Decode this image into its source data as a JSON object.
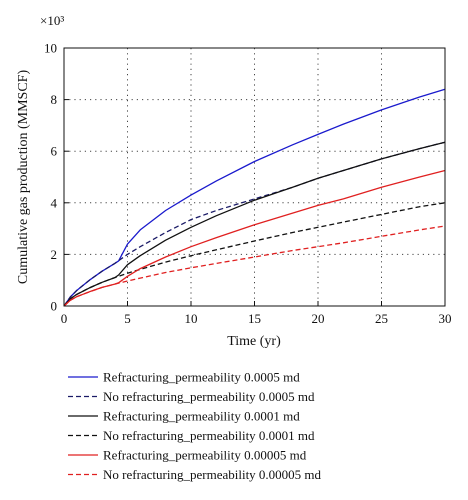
{
  "chart_data": {
    "type": "line",
    "title": "",
    "xlabel": "Time (yr)",
    "ylabel": "Cumulative gas production (MMSCF)",
    "y_multiplier_label": "×10³",
    "xlim": [
      0,
      30
    ],
    "ylim": [
      0,
      10
    ],
    "x_ticks": [
      "0",
      "5",
      "10",
      "15",
      "20",
      "25",
      "30"
    ],
    "y_ticks": [
      "0",
      "2",
      "4",
      "6",
      "8",
      "10"
    ],
    "grid": "dotted, at x=5,10,15,20,25 and y=2,4,6,8",
    "legend_position": "bottom, below plot",
    "series": [
      {
        "name": "Refracturing_permeability 0.0005 md",
        "color": "#1a1acd",
        "dash": "solid",
        "x": [
          0,
          0.5,
          1,
          2,
          3,
          4,
          4.3,
          5,
          6,
          8,
          10,
          12,
          15,
          18,
          20,
          22,
          25,
          28,
          30
        ],
        "y": [
          0,
          0.35,
          0.6,
          1.0,
          1.35,
          1.65,
          1.75,
          2.4,
          2.95,
          3.7,
          4.3,
          4.85,
          5.6,
          6.25,
          6.65,
          7.05,
          7.6,
          8.1,
          8.4
        ]
      },
      {
        "name": "No refracturing_permeability 0.0005 md",
        "color": "#1a1a66",
        "dash": "dashed",
        "x": [
          0,
          0.5,
          1,
          2,
          3,
          4,
          5,
          6,
          8,
          10,
          12,
          15,
          18,
          20,
          22,
          25,
          28,
          30
        ],
        "y": [
          0,
          0.35,
          0.6,
          1.0,
          1.35,
          1.65,
          2.0,
          2.3,
          2.85,
          3.35,
          3.7,
          4.15,
          4.6,
          4.95,
          5.25,
          5.7,
          6.1,
          6.35
        ]
      },
      {
        "name": "Refracturing_permeability 0.0001 md",
        "color": "#111111",
        "dash": "solid",
        "x": [
          0,
          0.5,
          1,
          2,
          3,
          4,
          4.3,
          5,
          6,
          8,
          10,
          12,
          15,
          18,
          20,
          22,
          25,
          28,
          30
        ],
        "y": [
          0,
          0.28,
          0.45,
          0.7,
          0.92,
          1.1,
          1.2,
          1.6,
          1.95,
          2.55,
          3.05,
          3.5,
          4.1,
          4.6,
          4.95,
          5.25,
          5.7,
          6.1,
          6.35
        ]
      },
      {
        "name": "No refracturing_permeability 0.0001 md",
        "color": "#111111",
        "dash": "dashed",
        "x": [
          0,
          0.5,
          1,
          2,
          3,
          4,
          5,
          6,
          8,
          10,
          12,
          15,
          18,
          20,
          22,
          25,
          28,
          30
        ],
        "y": [
          0,
          0.28,
          0.45,
          0.7,
          0.92,
          1.1,
          1.27,
          1.42,
          1.7,
          1.95,
          2.18,
          2.52,
          2.85,
          3.05,
          3.25,
          3.55,
          3.85,
          4.0
        ]
      },
      {
        "name": "Refracturing_permeability 0.00005 md",
        "color": "#e02020",
        "dash": "solid",
        "x": [
          0,
          0.5,
          1,
          2,
          3,
          4,
          4.3,
          5,
          6,
          8,
          10,
          12,
          15,
          18,
          20,
          22,
          25,
          28,
          30
        ],
        "y": [
          0,
          0.22,
          0.36,
          0.55,
          0.72,
          0.85,
          0.9,
          1.15,
          1.45,
          1.9,
          2.3,
          2.65,
          3.15,
          3.6,
          3.9,
          4.15,
          4.6,
          5.0,
          5.25
        ]
      },
      {
        "name": "No refracturing_permeability 0.00005 md",
        "color": "#e02020",
        "dash": "dashed",
        "x": [
          0,
          0.5,
          1,
          2,
          3,
          4,
          5,
          6,
          8,
          10,
          12,
          15,
          18,
          20,
          22,
          25,
          28,
          30
        ],
        "y": [
          0,
          0.22,
          0.36,
          0.55,
          0.72,
          0.85,
          0.97,
          1.08,
          1.3,
          1.48,
          1.65,
          1.9,
          2.15,
          2.3,
          2.45,
          2.7,
          2.95,
          3.1
        ]
      }
    ]
  }
}
